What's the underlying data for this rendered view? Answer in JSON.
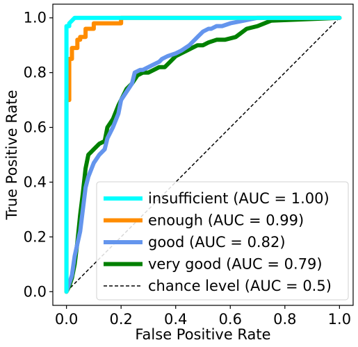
{
  "chart_data": {
    "type": "line",
    "xlabel": "False Positive Rate",
    "ylabel": "True Positive Rate",
    "xlim": [
      -0.05,
      1.05
    ],
    "ylim": [
      -0.05,
      1.05
    ],
    "xticks": [
      "0.0",
      "0.2",
      "0.4",
      "0.6",
      "0.8",
      "1.0"
    ],
    "yticks": [
      "0.0",
      "0.2",
      "0.4",
      "0.6",
      "0.8",
      "1.0"
    ],
    "grid": false,
    "legend_position": "lower-right",
    "series": [
      {
        "name": "insufficient (AUC = 1.00)",
        "color": "#00ffff",
        "x": [
          0.0,
          0.0,
          0.0,
          0.01,
          0.01,
          0.02,
          0.03,
          0.2,
          1.0
        ],
        "y": [
          0.0,
          0.6,
          0.97,
          0.97,
          0.98,
          0.99,
          1.0,
          1.0,
          1.0
        ]
      },
      {
        "name": "enough (AUC = 0.99)",
        "color": "#ff8c00",
        "x": [
          0.0,
          0.0,
          0.01,
          0.01,
          0.02,
          0.03,
          0.04,
          0.05,
          0.05,
          0.07,
          0.07,
          0.1,
          0.1,
          0.2,
          0.2,
          0.62,
          1.0
        ],
        "y": [
          0.0,
          0.7,
          0.7,
          0.85,
          0.85,
          0.89,
          0.89,
          0.92,
          0.93,
          0.93,
          0.96,
          0.96,
          0.98,
          0.98,
          0.99,
          1.0,
          1.0
        ],
        "step": true
      },
      {
        "name": "good (AUC = 0.82)",
        "color": "#6495ed",
        "x": [
          0.0,
          0.01,
          0.02,
          0.03,
          0.05,
          0.06,
          0.07,
          0.08,
          0.1,
          0.12,
          0.14,
          0.15,
          0.17,
          0.19,
          0.2,
          0.22,
          0.24,
          0.25,
          0.27,
          0.28,
          0.3,
          0.32,
          0.34,
          0.35,
          0.37,
          0.4,
          0.42,
          0.45,
          0.48,
          0.5,
          0.52,
          0.53,
          0.55,
          0.57,
          0.6,
          0.65,
          0.7,
          0.8,
          1.0
        ],
        "y": [
          0.0,
          0.03,
          0.06,
          0.13,
          0.22,
          0.3,
          0.38,
          0.42,
          0.47,
          0.5,
          0.52,
          0.56,
          0.6,
          0.65,
          0.7,
          0.73,
          0.76,
          0.8,
          0.81,
          0.81,
          0.82,
          0.83,
          0.84,
          0.85,
          0.86,
          0.87,
          0.88,
          0.9,
          0.93,
          0.95,
          0.96,
          0.96,
          0.97,
          0.97,
          0.98,
          0.99,
          1.0,
          1.0,
          1.0
        ]
      },
      {
        "name": "very good (AUC = 0.79)",
        "color": "#008000",
        "x": [
          0.0,
          0.01,
          0.02,
          0.03,
          0.04,
          0.05,
          0.06,
          0.07,
          0.08,
          0.09,
          0.1,
          0.12,
          0.14,
          0.15,
          0.17,
          0.19,
          0.2,
          0.22,
          0.24,
          0.26,
          0.28,
          0.3,
          0.32,
          0.34,
          0.36,
          0.38,
          0.4,
          0.42,
          0.44,
          0.46,
          0.48,
          0.5,
          0.52,
          0.55,
          0.58,
          0.62,
          0.66,
          0.7,
          0.75,
          1.0
        ],
        "y": [
          0.0,
          0.02,
          0.05,
          0.1,
          0.18,
          0.28,
          0.36,
          0.45,
          0.5,
          0.51,
          0.52,
          0.54,
          0.55,
          0.6,
          0.63,
          0.68,
          0.7,
          0.74,
          0.76,
          0.79,
          0.8,
          0.8,
          0.81,
          0.82,
          0.82,
          0.84,
          0.86,
          0.87,
          0.88,
          0.89,
          0.9,
          0.9,
          0.91,
          0.92,
          0.92,
          0.93,
          0.96,
          0.97,
          0.99,
          1.0
        ]
      }
    ],
    "reference_line": {
      "name": "chance level (AUC = 0.5)",
      "color": "#000000",
      "x": [
        0.0,
        1.0
      ],
      "y": [
        0.0,
        1.0
      ],
      "dashed": true
    }
  }
}
